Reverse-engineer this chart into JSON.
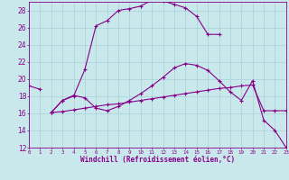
{
  "xlabel": "Windchill (Refroidissement éolien,°C)",
  "background_color": "#c8e8ec",
  "grid_color": "#a0ccd0",
  "line_color": "#880088",
  "xlim": [
    0,
    23
  ],
  "ylim": [
    12,
    29
  ],
  "yticks": [
    12,
    14,
    16,
    18,
    20,
    22,
    24,
    26,
    28
  ],
  "xticks": [
    0,
    1,
    2,
    3,
    4,
    5,
    6,
    7,
    8,
    9,
    10,
    11,
    12,
    13,
    14,
    15,
    16,
    17,
    18,
    19,
    20,
    21,
    22,
    23
  ],
  "curve1_x": [
    0,
    1
  ],
  "curve1_y": [
    19.2,
    18.8
  ],
  "curve2_x": [
    2,
    3,
    4,
    5,
    6,
    7,
    8,
    9,
    10,
    11,
    12,
    13,
    14,
    15,
    16,
    17,
    18,
    19,
    20,
    21,
    22,
    23
  ],
  "curve2_y": [
    16.1,
    17.5,
    18.1,
    17.8,
    16.6,
    16.3,
    16.8,
    17.5,
    18.3,
    19.2,
    20.2,
    21.3,
    21.8,
    21.6,
    21.0,
    19.8,
    18.5,
    17.5,
    19.8,
    15.2,
    14.0,
    12.0
  ],
  "curve3_x": [
    2,
    3,
    4,
    5,
    6,
    7,
    8,
    9,
    10,
    11,
    12,
    13,
    14,
    15,
    16,
    17
  ],
  "curve3_y": [
    16.1,
    17.5,
    18.0,
    21.1,
    26.2,
    26.8,
    28.0,
    28.2,
    28.5,
    29.2,
    29.1,
    28.7,
    28.3,
    27.3,
    25.2,
    25.2
  ],
  "curve4_x": [
    2,
    3,
    4,
    5,
    6,
    7,
    8,
    9,
    10,
    11,
    12,
    13,
    14,
    15,
    16,
    17,
    18,
    19,
    20,
    21,
    22,
    23
  ],
  "curve4_y": [
    16.1,
    16.2,
    16.4,
    16.6,
    16.8,
    17.0,
    17.1,
    17.3,
    17.5,
    17.7,
    17.9,
    18.1,
    18.3,
    18.5,
    18.7,
    18.9,
    19.0,
    19.2,
    19.3,
    16.3,
    16.3,
    16.3
  ]
}
